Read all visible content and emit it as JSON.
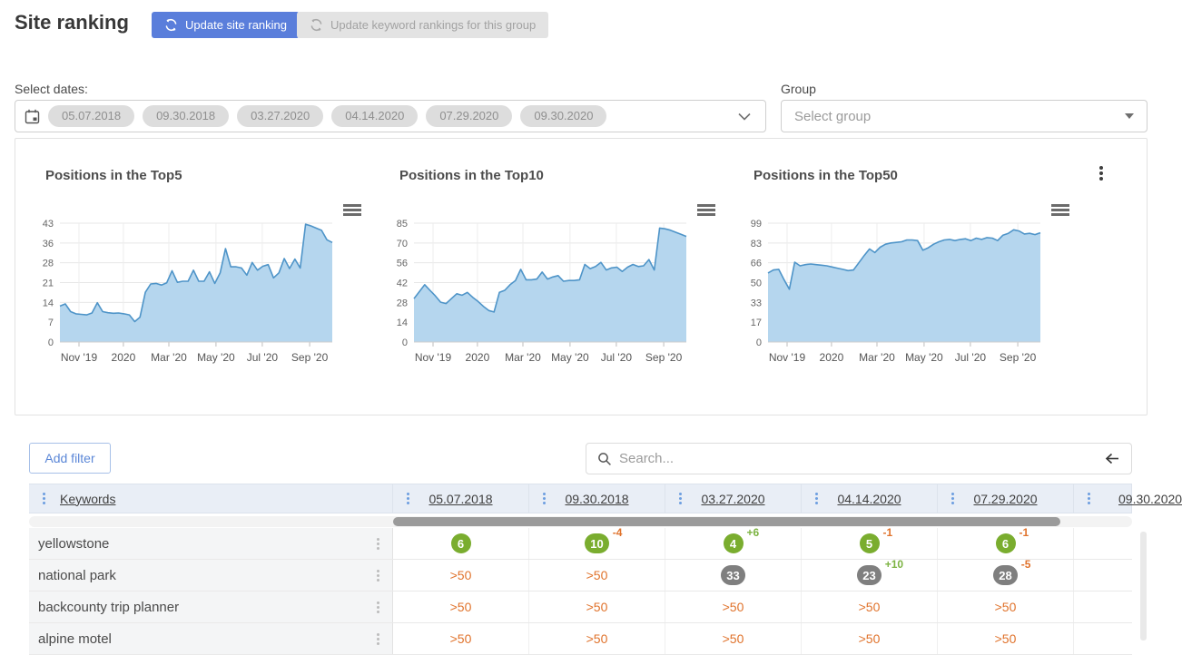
{
  "header": {
    "title": "Site ranking",
    "update_site_button": "Update site ranking",
    "update_keywords_button": "Update keyword rankings for this group"
  },
  "filters": {
    "dates_label": "Select dates:",
    "dates": [
      "05.07.2018",
      "09.30.2018",
      "03.27.2020",
      "04.14.2020",
      "07.29.2020",
      "09.30.2020"
    ],
    "group_label": "Group",
    "group_placeholder": "Select group"
  },
  "chart_data": [
    {
      "type": "area",
      "title": "Positions in the Top5",
      "xlabel": "",
      "ylabel": "",
      "x_ticks": [
        "Nov '19",
        "2020",
        "Mar '20",
        "May '20",
        "Jul '20",
        "Sep '20"
      ],
      "x_tick_positions": [
        0.07,
        0.233,
        0.4,
        0.573,
        0.743,
        0.917
      ],
      "y_ticks": [
        "0",
        "7",
        "14",
        "21",
        "28",
        "36",
        "43"
      ],
      "ylim": [
        0,
        43
      ],
      "grid": true,
      "legend": false,
      "values": [
        13,
        13.8,
        11,
        10.2,
        10,
        9.8,
        10.5,
        14.2,
        11,
        10.6,
        10.4,
        10.5,
        10.2,
        9.8,
        7.4,
        9,
        18,
        21,
        21.2,
        20.6,
        21.4,
        25.8,
        21.6,
        22,
        22,
        26,
        22,
        22,
        25.4,
        21.2,
        25,
        33.8,
        27.2,
        27.2,
        26.8,
        24.2,
        28.8,
        26,
        27.4,
        28,
        23.2,
        25,
        30.2,
        26.6,
        30,
        26.8,
        42.6,
        42,
        41.2,
        40.4,
        37,
        36
      ]
    },
    {
      "type": "area",
      "title": "Positions in the Top10",
      "xlabel": "",
      "ylabel": "",
      "x_ticks": [
        "Nov '19",
        "2020",
        "Mar '20",
        "May '20",
        "Jul '20",
        "Sep '20"
      ],
      "x_tick_positions": [
        0.07,
        0.233,
        0.4,
        0.573,
        0.743,
        0.917
      ],
      "y_ticks": [
        "0",
        "14",
        "28",
        "42",
        "56",
        "70",
        "85"
      ],
      "ylim": [
        0,
        85
      ],
      "grid": true,
      "legend": false,
      "values": [
        31,
        36,
        41,
        37,
        33,
        28.5,
        27.5,
        31,
        34.5,
        33.5,
        35.5,
        32,
        29,
        25.5,
        22.5,
        21.5,
        35.5,
        37,
        41,
        44,
        52,
        44.5,
        44.5,
        45,
        50,
        45,
        46.5,
        47.5,
        43.5,
        44,
        44,
        44.5,
        55.5,
        52.5,
        54,
        57,
        51.5,
        53,
        53.5,
        50.5,
        53.5,
        55.5,
        54,
        54.5,
        59,
        51.5,
        81.5,
        81,
        80,
        78.5,
        77,
        75.5
      ]
    },
    {
      "type": "area",
      "title": "Positions in the Top50",
      "xlabel": "",
      "ylabel": "",
      "x_ticks": [
        "Nov '19",
        "2020",
        "Mar '20",
        "May '20",
        "Jul '20",
        "Sep '20"
      ],
      "x_tick_positions": [
        0.07,
        0.233,
        0.4,
        0.573,
        0.743,
        0.917
      ],
      "y_ticks": [
        "0",
        "17",
        "33",
        "50",
        "66",
        "83",
        "99"
      ],
      "ylim": [
        0,
        99
      ],
      "grid": true,
      "legend": false,
      "values": [
        57.5,
        60,
        60.5,
        52,
        44,
        66.5,
        63.5,
        64.5,
        65,
        64.5,
        64,
        63.5,
        62.5,
        61.5,
        60.5,
        59.5,
        60,
        66,
        72,
        77.5,
        74.5,
        79,
        81.5,
        82.5,
        83,
        83.5,
        85,
        85,
        84.5,
        76.5,
        78.5,
        81.5,
        83.5,
        85,
        85.5,
        84.5,
        85.5,
        86,
        84.5,
        86.5,
        85.5,
        87,
        86.5,
        84.5,
        89,
        90.5,
        93.5,
        92.5,
        90,
        90.5,
        89.5,
        91
      ]
    }
  ],
  "table": {
    "add_filter_label": "Add filter",
    "search_placeholder": "Search...",
    "columns": [
      "Keywords",
      "05.07.2018",
      "09.30.2018",
      "03.27.2020",
      "04.14.2020",
      "07.29.2020",
      "09.30.2020"
    ],
    "rows": [
      {
        "keyword": "yellowstone",
        "cells": [
          {
            "type": "badge-green",
            "value": "6"
          },
          {
            "type": "badge-green",
            "value": "10",
            "change": "-4"
          },
          {
            "type": "badge-green",
            "value": "4",
            "change": "+6"
          },
          {
            "type": "badge-green",
            "value": "5",
            "change": "-1"
          },
          {
            "type": "badge-green",
            "value": "6",
            "change": "-1"
          },
          {
            "type": "empty"
          }
        ]
      },
      {
        "keyword": "national park",
        "cells": [
          {
            "type": "text-orange",
            "value": ">50"
          },
          {
            "type": "text-orange",
            "value": ">50"
          },
          {
            "type": "badge-gray",
            "value": "33"
          },
          {
            "type": "badge-gray",
            "value": "23",
            "change": "+10"
          },
          {
            "type": "badge-gray",
            "value": "28",
            "change": "-5"
          },
          {
            "type": "empty"
          }
        ]
      },
      {
        "keyword": "backcounty trip planner",
        "cells": [
          {
            "type": "text-orange",
            "value": ">50"
          },
          {
            "type": "text-orange",
            "value": ">50"
          },
          {
            "type": "text-orange",
            "value": ">50"
          },
          {
            "type": "text-orange",
            "value": ">50"
          },
          {
            "type": "text-orange",
            "value": ">50"
          },
          {
            "type": "empty"
          }
        ]
      },
      {
        "keyword": "alpine motel",
        "cells": [
          {
            "type": "text-orange",
            "value": ">50"
          },
          {
            "type": "text-orange",
            "value": ">50"
          },
          {
            "type": "text-orange",
            "value": ">50"
          },
          {
            "type": "text-orange",
            "value": ">50"
          },
          {
            "type": "text-orange",
            "value": ">50"
          },
          {
            "type": "empty"
          }
        ]
      }
    ]
  },
  "colors": {
    "accent_blue": "#5a7edb",
    "link_blue": "#5b87d7",
    "badge_green": "#7aad2f",
    "badge_gray": "#7f7f7f",
    "value_orange": "#e0732c",
    "change_green": "#7cb342",
    "chart_line": "#4e94c8",
    "chart_fill": "#b5d6ee",
    "table_header_bg": "#e9eef6"
  }
}
